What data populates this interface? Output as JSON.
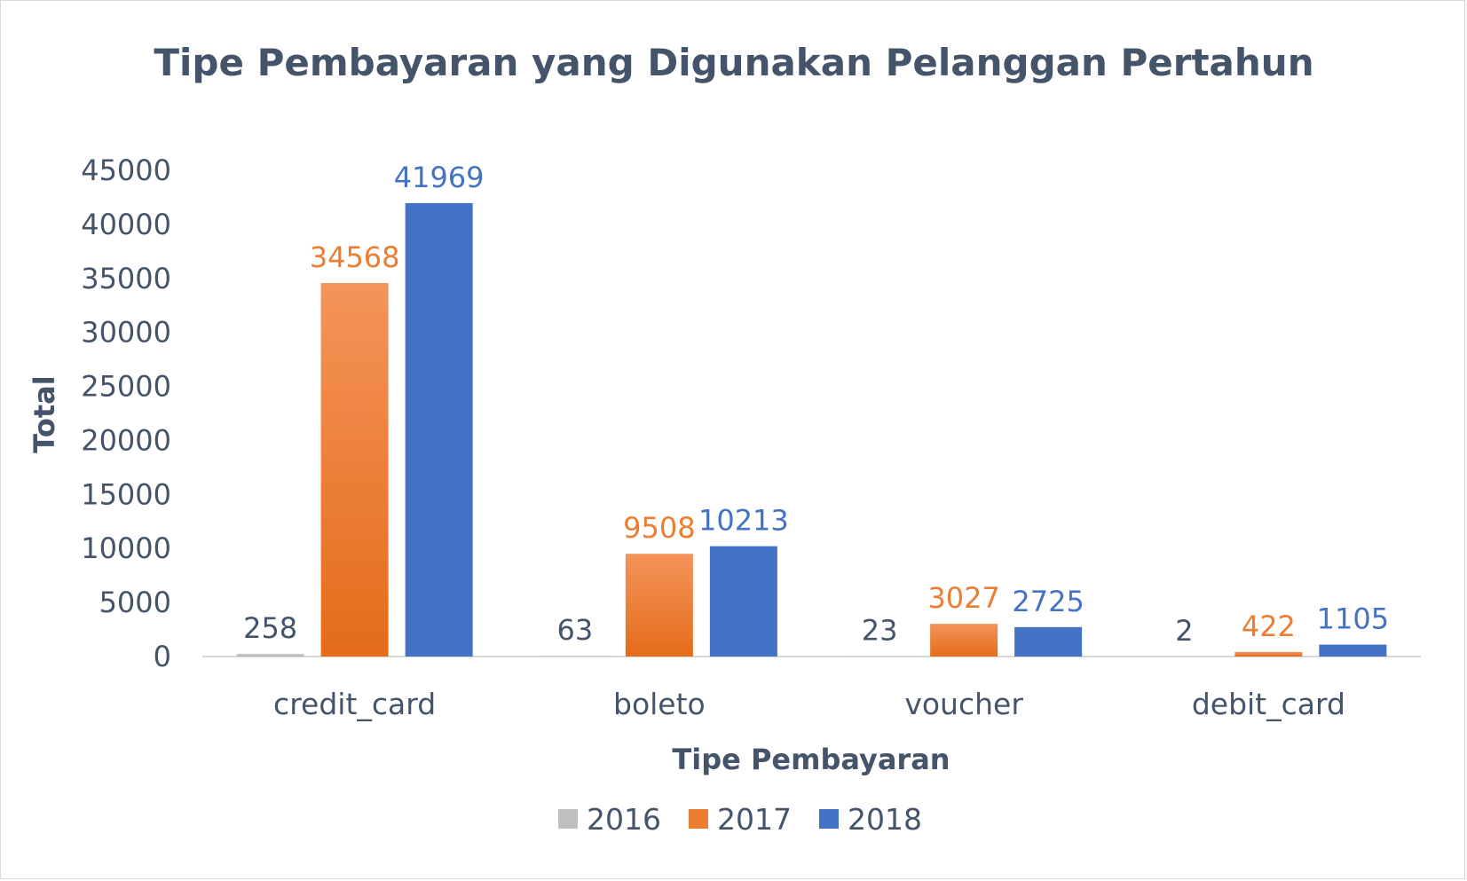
{
  "chart_data": {
    "type": "bar",
    "title": "Tipe Pembayaran yang Digunakan Pelanggan Pertahun",
    "xlabel": "Tipe Pembayaran",
    "ylabel": "Total",
    "categories": [
      "credit_card",
      "boleto",
      "voucher",
      "debit_card"
    ],
    "ylim": [
      0,
      45000
    ],
    "yticks": [
      0,
      5000,
      10000,
      15000,
      20000,
      25000,
      30000,
      35000,
      40000,
      45000
    ],
    "grid": false,
    "legend": "bottom",
    "series": [
      {
        "name": "2016",
        "color": "#bfbfbf",
        "label_color": "#44546a",
        "values": [
          258,
          63,
          23,
          2
        ]
      },
      {
        "name": "2017",
        "color": "#ed7d31",
        "label_color": "#ed7d31",
        "values": [
          34568,
          9508,
          3027,
          422
        ]
      },
      {
        "name": "2018",
        "color": "#4472c4",
        "label_color": "#4472c4",
        "values": [
          41969,
          10213,
          2725,
          1105
        ]
      }
    ]
  }
}
